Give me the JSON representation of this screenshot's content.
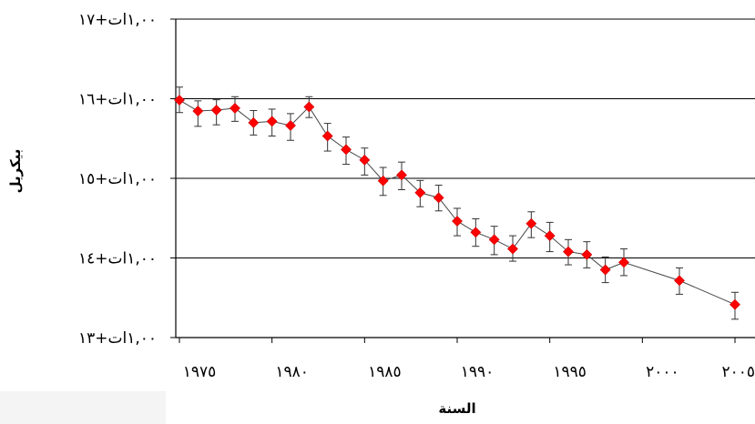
{
  "chart_data": {
    "type": "line",
    "title": "",
    "xlabel": "السنة",
    "ylabel": "بيكريل",
    "y_scale": "log",
    "ylim": [
      10000000000000.0,
      1e+17
    ],
    "xlim": [
      1975,
      2005
    ],
    "grid": {
      "y_major": true,
      "x": false
    },
    "legend": "none",
    "y_tick_labels": [
      "١,٠٠ات+١٣",
      "١,٠٠ات+١٤",
      "١,٠٠ات+١٥",
      "١,٠٠ات+١٦",
      "١,٠٠ات+١٧"
    ],
    "y_tick_values": [
      10000000000000.0,
      100000000000000.0,
      1000000000000000.0,
      1e+16,
      1e+17
    ],
    "x_tick_labels": [
      "١٩٧٥",
      "١٩٨٠",
      "١٩٨٥",
      "١٩٩٠",
      "١٩٩٥",
      "٢٠٠٠",
      "٢٠٠٥"
    ],
    "x_tick_values": [
      1975,
      1980,
      1985,
      1990,
      1995,
      2000,
      2005
    ],
    "series": [
      {
        "x": [
          1975,
          1976,
          1977,
          1978,
          1979,
          1980,
          1981,
          1982,
          1983,
          1984,
          1985,
          1986,
          1987,
          1988,
          1989,
          1990,
          1991,
          1992,
          1993,
          1994,
          1995,
          1996,
          1997,
          1998,
          1999,
          2002,
          2005
        ],
        "y": [
          9600000000000000.0,
          7000000000000000.0,
          7200000000000000.0,
          7600000000000000.0,
          5000000000000000.0,
          5200000000000000.0,
          4600000000000000.0,
          7900000000000000.0,
          3400000000000000.0,
          2300000000000000.0,
          1700000000000000.0,
          930000000000000.0,
          1100000000000000.0,
          660000000000000.0,
          570000000000000.0,
          290000000000000.0,
          210000000000000.0,
          170000000000000.0,
          130000000000000.0,
          270000000000000.0,
          190000000000000.0,
          120000000000000.0,
          110000000000000.0,
          71000000000000.0,
          88000000000000.0,
          52000000000000.0,
          26000000000000.0
        ],
        "err_low": [
          6700000000000000.0,
          4500000000000000.0,
          4700000000000000.0,
          5200000000000000.0,
          3500000000000000.0,
          3400000000000000.0,
          3000000000000000.0,
          5800000000000000.0,
          2200000000000000.0,
          1500000000000000.0,
          1100000000000000.0,
          610000000000000.0,
          720000000000000.0,
          440000000000000.0,
          390000000000000.0,
          190000000000000.0,
          140000000000000.0,
          110000000000000.0,
          91000000000000.0,
          180000000000000.0,
          120000000000000.0,
          82000000000000.0,
          75000000000000.0,
          49000000000000.0,
          60000000000000.0,
          35000000000000.0,
          17000000000000.0
        ],
        "err_high": [
          1.4e+16,
          9400000000000000.0,
          9700000000000000.0,
          1.06e+16,
          7100000000000000.0,
          7400000000000000.0,
          6500000000000000.0,
          1.06e+16,
          4900000000000000.0,
          3300000000000000.0,
          2400000000000000.0,
          1370000000000000.0,
          1600000000000000.0,
          940000000000000.0,
          820000000000000.0,
          420000000000000.0,
          310000000000000.0,
          250000000000000.0,
          190000000000000.0,
          380000000000000.0,
          280000000000000.0,
          170000000000000.0,
          160000000000000.0,
          103000000000000.0,
          130000000000000.0,
          75000000000000.0,
          37000000000000.0
        ]
      }
    ],
    "colors": {
      "marker": "#ff0000",
      "line": "#444444",
      "grid": "#000000",
      "errorbar": "#333333"
    }
  }
}
